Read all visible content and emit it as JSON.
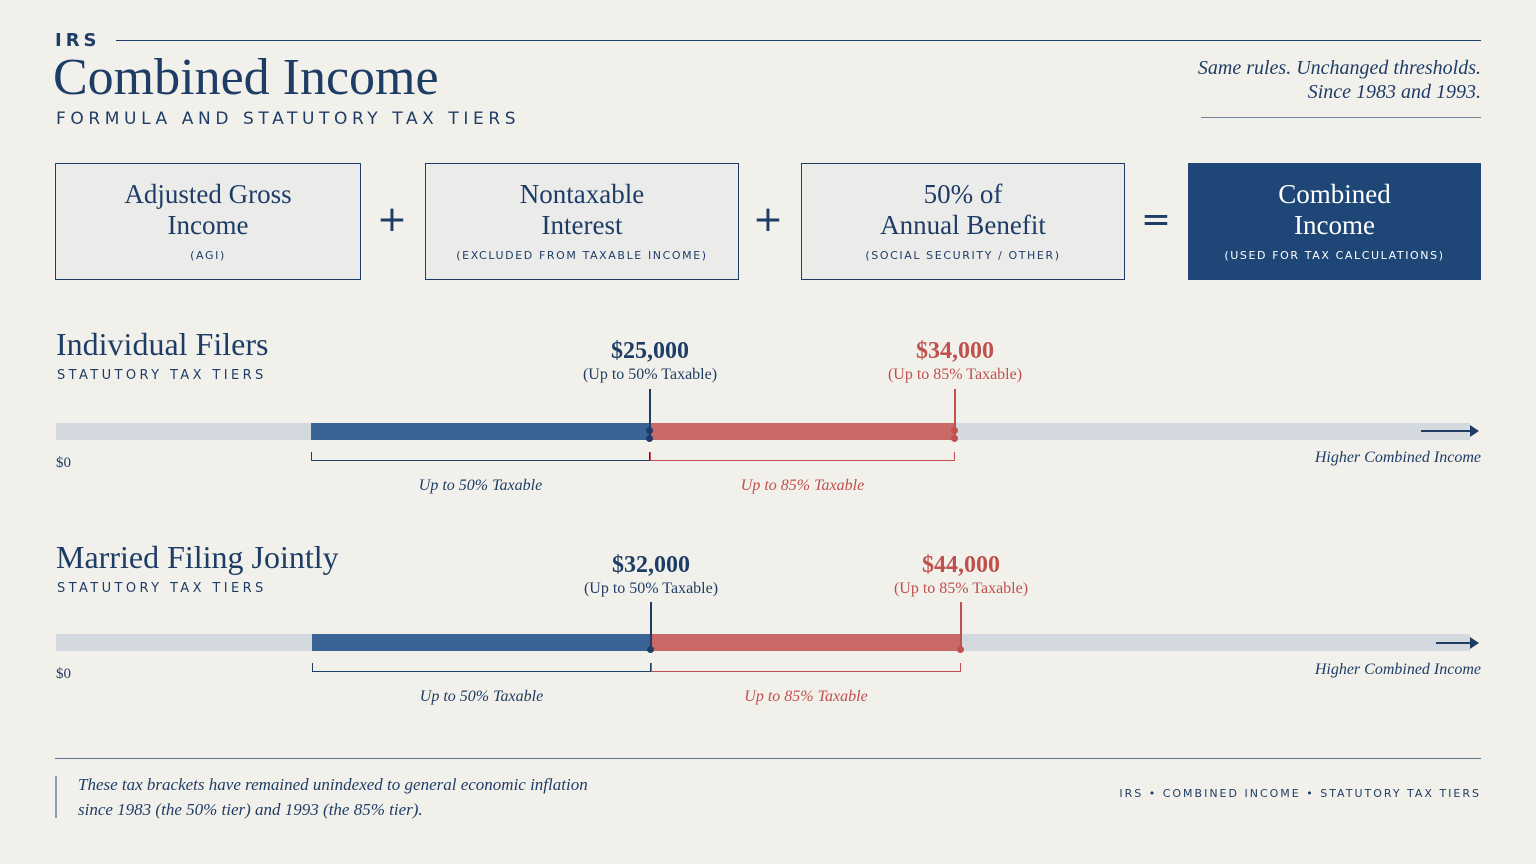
{
  "header": {
    "kicker": "IRS",
    "title": "Combined Income",
    "subtitle": "FORMULA AND STATUTORY TAX TIERS",
    "tagline_line1": "Same rules. Unchanged thresholds.",
    "tagline_line2": "Since 1983 and 1993."
  },
  "formula": {
    "boxes": [
      {
        "title_line1": "Adjusted Gross",
        "title_line2": "Income",
        "sub": "(AGI)"
      },
      {
        "title_line1": "Nontaxable",
        "title_line2": "Interest",
        "sub": "(EXCLUDED FROM TAXABLE INCOME)"
      },
      {
        "title_line1": "50% of",
        "title_line2": "Annual Benefit",
        "sub": "(SOCIAL SECURITY / OTHER)"
      },
      {
        "title_line1": "Combined",
        "title_line2": "Income",
        "sub": "(USED FOR TAX CALCULATIONS)"
      }
    ],
    "operators": [
      "+",
      "+",
      "="
    ]
  },
  "sections": [
    {
      "title": "Individual Filers",
      "subtitle": "STATUTORY TAX TIERS",
      "tier1": {
        "amount": "$25,000",
        "note": "(Up to 50% Taxable)",
        "value": 25000
      },
      "tier2": {
        "amount": "$34,000",
        "note": "(Up to 85% Taxable)",
        "value": 34000
      },
      "zero_label": "$0",
      "axis_label": "Higher Combined Income",
      "bracket1_label": "Up to 50% Taxable",
      "bracket2_label": "Up to 85% Taxable"
    },
    {
      "title": "Married Filing Jointly",
      "subtitle": "STATUTORY TAX TIERS",
      "tier1": {
        "amount": "$32,000",
        "note": "(Up to 50% Taxable)",
        "value": 32000
      },
      "tier2": {
        "amount": "$44,000",
        "note": "(Up to 85% Taxable)",
        "value": 44000
      },
      "zero_label": "$0",
      "axis_label": "Higher Combined Income",
      "bracket1_label": "Up to 50% Taxable",
      "bracket2_label": "Up to 85% Taxable"
    }
  ],
  "footer": {
    "note_line1": "These tax brackets have remained unindexed to general economic inflation",
    "note_line2": "since 1983 (the 50% tier) and 1993 (the 85% tier).",
    "meta": "IRS  •  COMBINED INCOME  •  STATUTORY TAX TIERS"
  },
  "colors": {
    "navy": "#1e3d66",
    "blue_tier": "#3b6496",
    "red_tier": "#c96a68",
    "background": "#f2f0ea"
  }
}
